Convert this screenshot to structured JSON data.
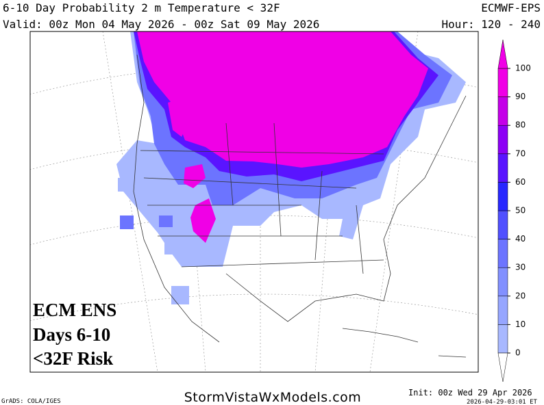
{
  "header": {
    "title": "6-10 Day Probability 2 m Temperature < 32F",
    "model": "ECMWF-EPS",
    "valid": "Valid: 00z Mon 04 May 2026 - 00z Sat 09 May 2026",
    "hour": "Hour: 120 - 240"
  },
  "map_label": {
    "lines": [
      "ECM ENS",
      "Days 6-10",
      "<32F Risk"
    ]
  },
  "colorbar": {
    "ticks": [
      0,
      10,
      20,
      30,
      40,
      50,
      60,
      70,
      80,
      90,
      100
    ],
    "colors": [
      "#a8b8ff",
      "#96a6ff",
      "#8290ff",
      "#6c74ff",
      "#5050ff",
      "#2828ff",
      "#5a14ff",
      "#8c00f5",
      "#c400e8",
      "#f000e6"
    ],
    "under_color": "#ffffff",
    "over_color": "#f000e6"
  },
  "footer": {
    "credit": "GrADS: COLA/IGES",
    "site": "StormVistaWxModels.com",
    "init": "Init: 00z Wed 29 Apr 2026",
    "timestamp": "2026-04-29-03:01 ET"
  }
}
